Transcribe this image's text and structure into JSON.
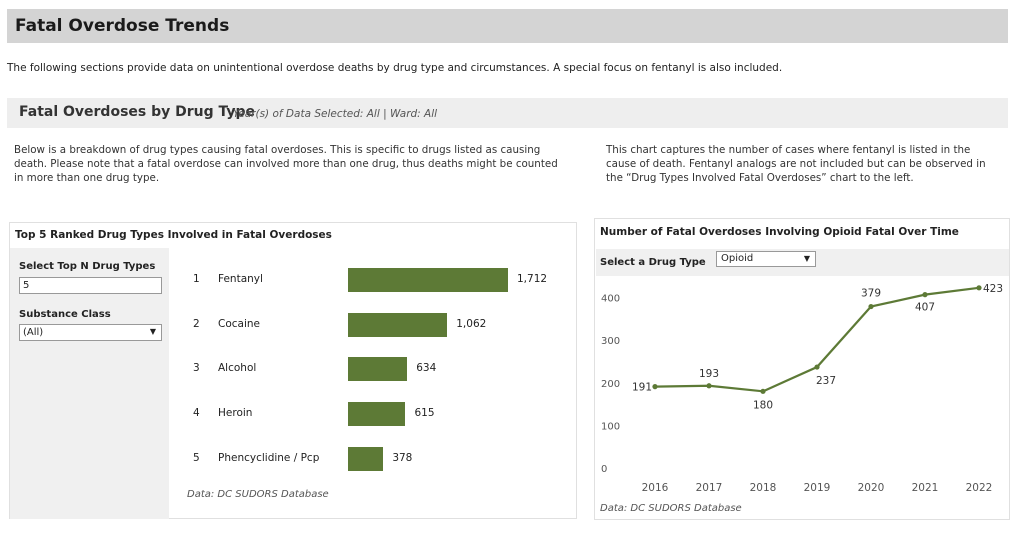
{
  "header": {
    "title": "Fatal Overdose Trends"
  },
  "intro": "The following sections provide data on unintentional overdose deaths by drug type and circumstances. A special focus on fentanyl is also included.",
  "section": {
    "title": "Fatal Overdoses by Drug Type",
    "subtitle": "Year(s) of Data Selected: All  | Ward: All"
  },
  "descriptions": {
    "left": "Below is a breakdown of drug types causing fatal overdoses. This is specific to drugs listed as causing death. Please note that a fatal overdose can involved more than one drug, thus deaths might be counted in more than one drug type.",
    "right": "This chart captures the number of cases where fentanyl is listed in the cause of death. Fentanyl analogs are not included but can be observed in the “Drug Types Involved Fatal Overdoses” chart to the left."
  },
  "left_panel": {
    "title": "Top 5 Ranked Drug Types Involved in Fatal Overdoses",
    "topn_label": "Select Top N Drug Types",
    "topn_value": "5",
    "class_label": "Substance Class",
    "class_value": "(All)",
    "source": "Data: DC SUDORS Database"
  },
  "right_panel": {
    "title": "Number of Fatal Overdoses Involving Opioid Fatal Over Time",
    "select_label": "Select a Drug Type",
    "select_value": "Opioid",
    "source": "Data: DC SUDORS Database"
  },
  "colors": {
    "bar": "#5d7a36",
    "line": "#5d7a36",
    "header_bg": "#d4d4d4",
    "section_bg": "#eeeeee",
    "filter_bg": "#f0f0f0"
  },
  "chart_data": [
    {
      "type": "bar",
      "orientation": "horizontal",
      "title": "Top 5 Ranked Drug Types Involved in Fatal Overdoses",
      "ranks": [
        "1",
        "2",
        "3",
        "4",
        "5"
      ],
      "categories": [
        "Fentanyl",
        "Cocaine",
        "Alcohol",
        "Heroin",
        "Phencyclidine / Pcp"
      ],
      "values": [
        1712,
        1062,
        634,
        615,
        378
      ],
      "value_labels": [
        "1,712",
        "1,062",
        "634",
        "615",
        "378"
      ],
      "xlim": [
        0,
        1712
      ]
    },
    {
      "type": "line",
      "title": "Number of Fatal Overdoses Involving Opioid Fatal Over Time",
      "x": [
        "2016",
        "2017",
        "2018",
        "2019",
        "2020",
        "2021",
        "2022"
      ],
      "values": [
        191,
        193,
        180,
        237,
        379,
        407,
        423
      ],
      "yticks": [
        "0",
        "100",
        "200",
        "300",
        "400"
      ],
      "ylim": [
        0,
        450
      ],
      "grid": false
    }
  ]
}
